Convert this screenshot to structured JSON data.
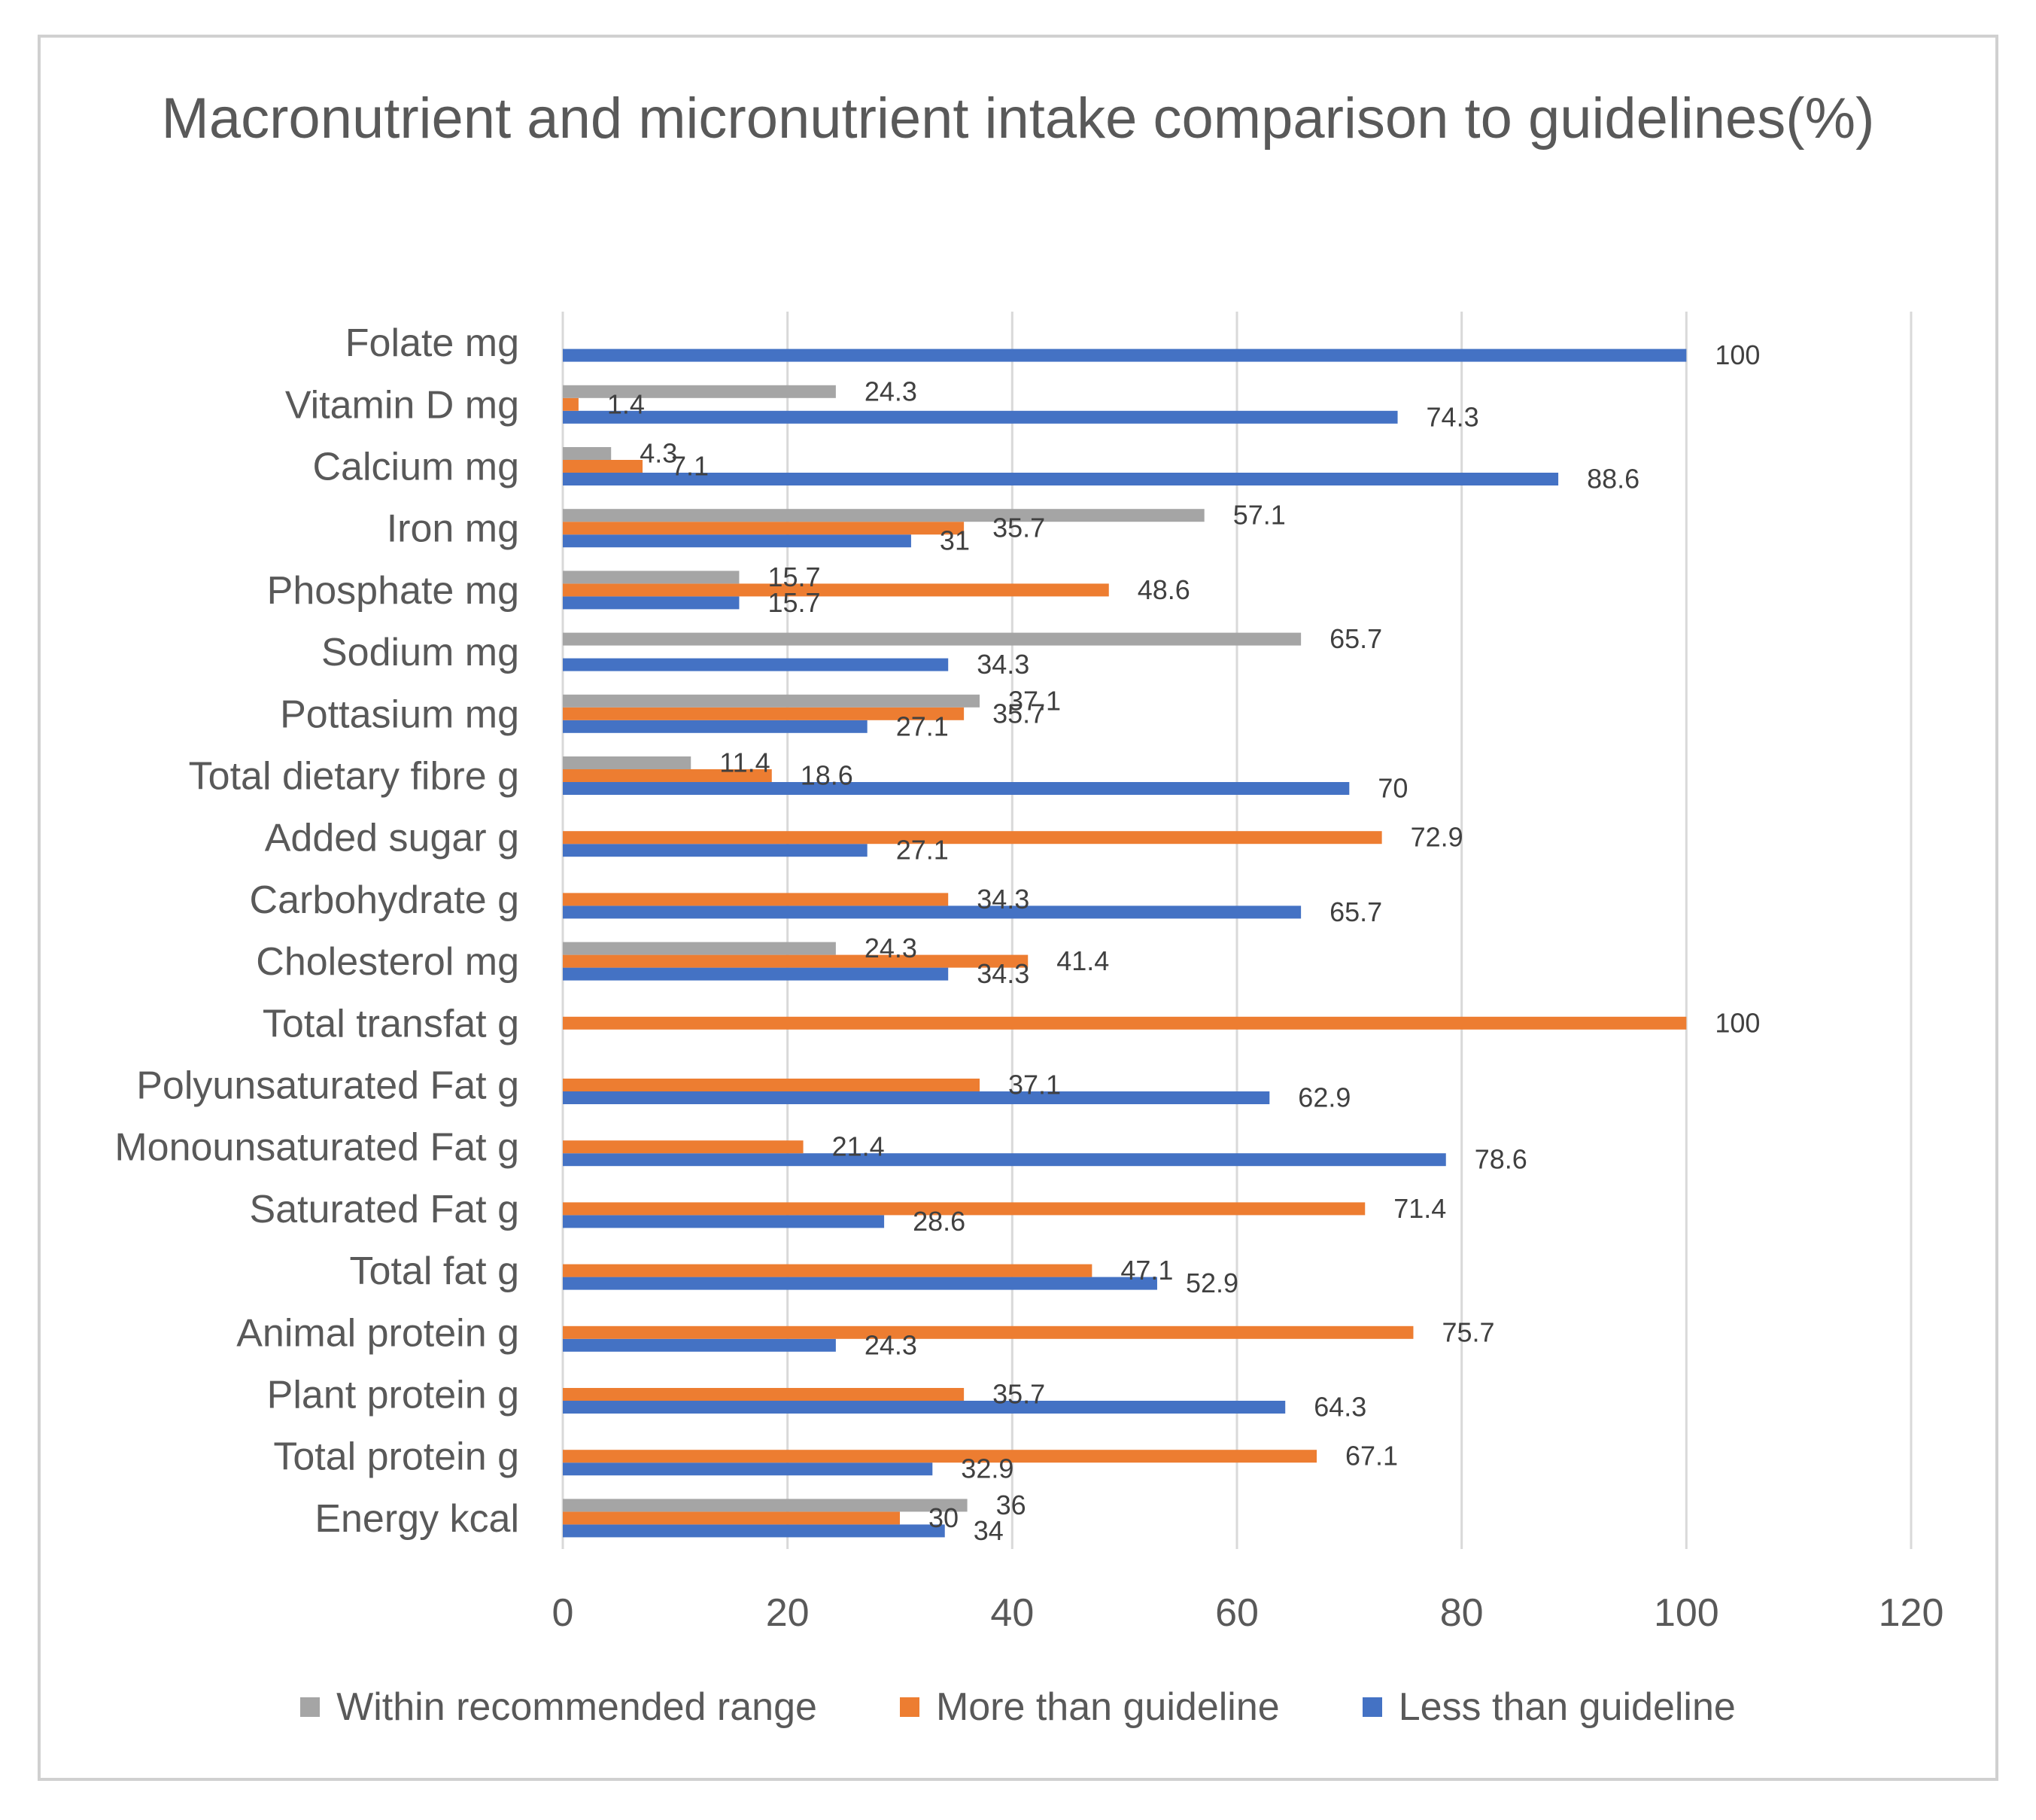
{
  "chart_data": {
    "type": "bar",
    "orientation": "horizontal",
    "title": "Macronutrient and micronutrient intake comparison to guidelines(%)",
    "xlabel": "",
    "ylabel": "",
    "xlim": [
      0,
      120
    ],
    "xticks": [
      0,
      20,
      40,
      60,
      80,
      100,
      120
    ],
    "grid": true,
    "legend_position": "bottom",
    "categories": [
      "Energy kcal",
      "Total protein g",
      "Plant protein g",
      "Animal protein g",
      "Total fat  g",
      "Saturated Fat g",
      "Monounsaturated Fat g",
      "Polyunsaturated Fat g",
      "Total transfat g",
      "Cholesterol mg",
      "Carbohydrate g",
      "Added sugar g",
      "Total dietary fibre g",
      "Pottasium mg",
      "Sodium mg",
      "Phosphate mg",
      "Iron mg",
      "Calcium mg",
      "Vitamin D mg",
      "Folate mg"
    ],
    "series": [
      {
        "name": "Less than guideline",
        "color": "#4472c4",
        "values": [
          34,
          32.9,
          64.3,
          24.3,
          52.9,
          28.6,
          78.6,
          62.9,
          null,
          34.3,
          65.7,
          27.1,
          70,
          27.1,
          34.3,
          15.7,
          31,
          88.6,
          74.3,
          100
        ]
      },
      {
        "name": "More than guideline",
        "color": "#ed7d31",
        "values": [
          30,
          67.1,
          35.7,
          75.7,
          47.1,
          71.4,
          21.4,
          37.1,
          100,
          41.4,
          34.3,
          72.9,
          18.6,
          35.7,
          null,
          48.6,
          35.7,
          7.1,
          1.4,
          null
        ]
      },
      {
        "name": "Within recommended range",
        "color": "#a5a5a5",
        "values": [
          36,
          null,
          null,
          null,
          null,
          null,
          null,
          null,
          null,
          24.3,
          null,
          null,
          11.4,
          37.1,
          65.7,
          15.7,
          57.1,
          4.3,
          24.3,
          null
        ]
      }
    ],
    "legend_order": [
      "Within recommended range",
      "More than guideline",
      "Less than guideline"
    ]
  }
}
